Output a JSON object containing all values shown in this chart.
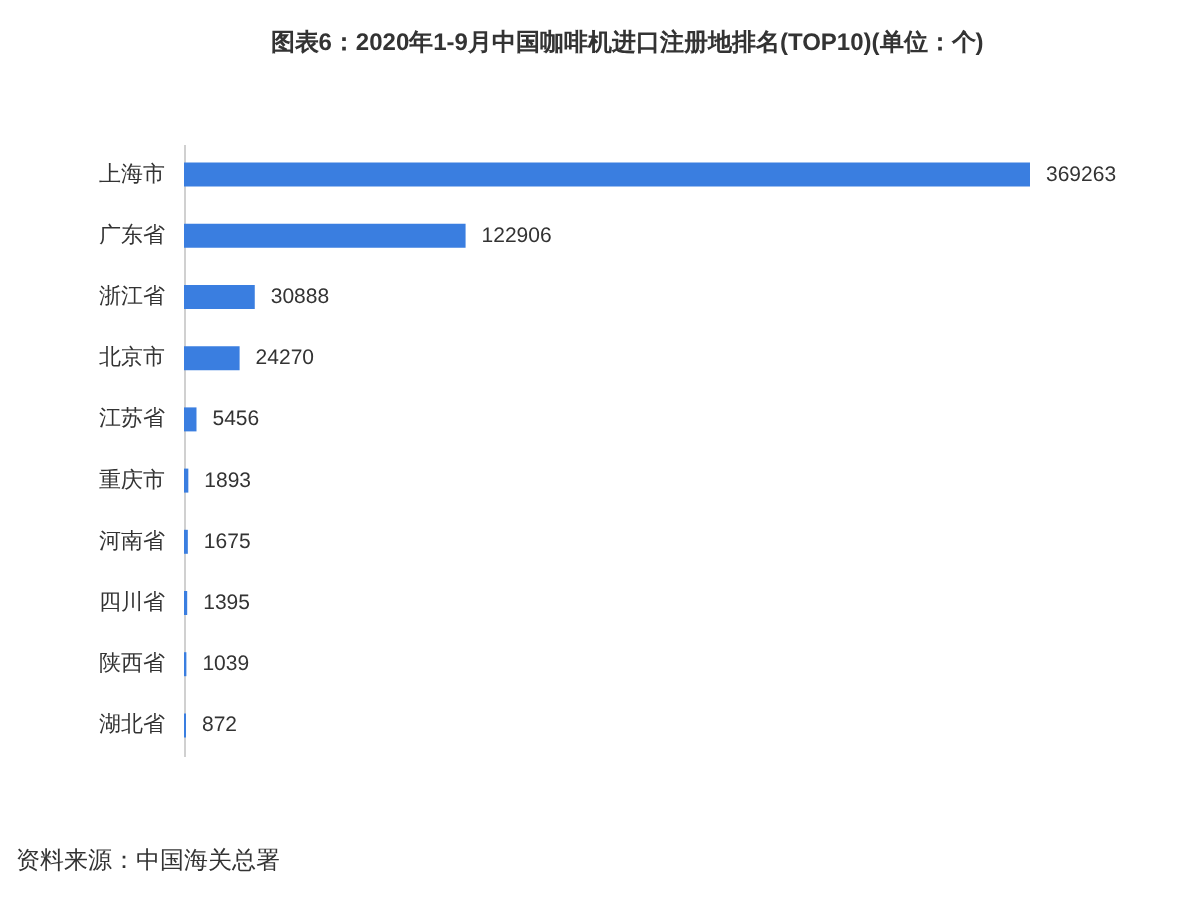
{
  "chart_data": {
    "type": "bar",
    "orientation": "horizontal",
    "title": "图表6：2020年1-9月中国咖啡机进口注册地排名(TOP10)(单位：个)",
    "categories": [
      "上海市",
      "广东省",
      "浙江省",
      "北京市",
      "江苏省",
      "重庆市",
      "河南省",
      "四川省",
      "陕西省",
      "湖北省"
    ],
    "values": [
      369263,
      122906,
      30888,
      24270,
      5456,
      1893,
      1675,
      1395,
      1039,
      872
    ],
    "color": "#3a7ee0",
    "data_labels": true,
    "tick_labels": "y",
    "annotations": [
      "资料来源：中国海关总署"
    ]
  }
}
